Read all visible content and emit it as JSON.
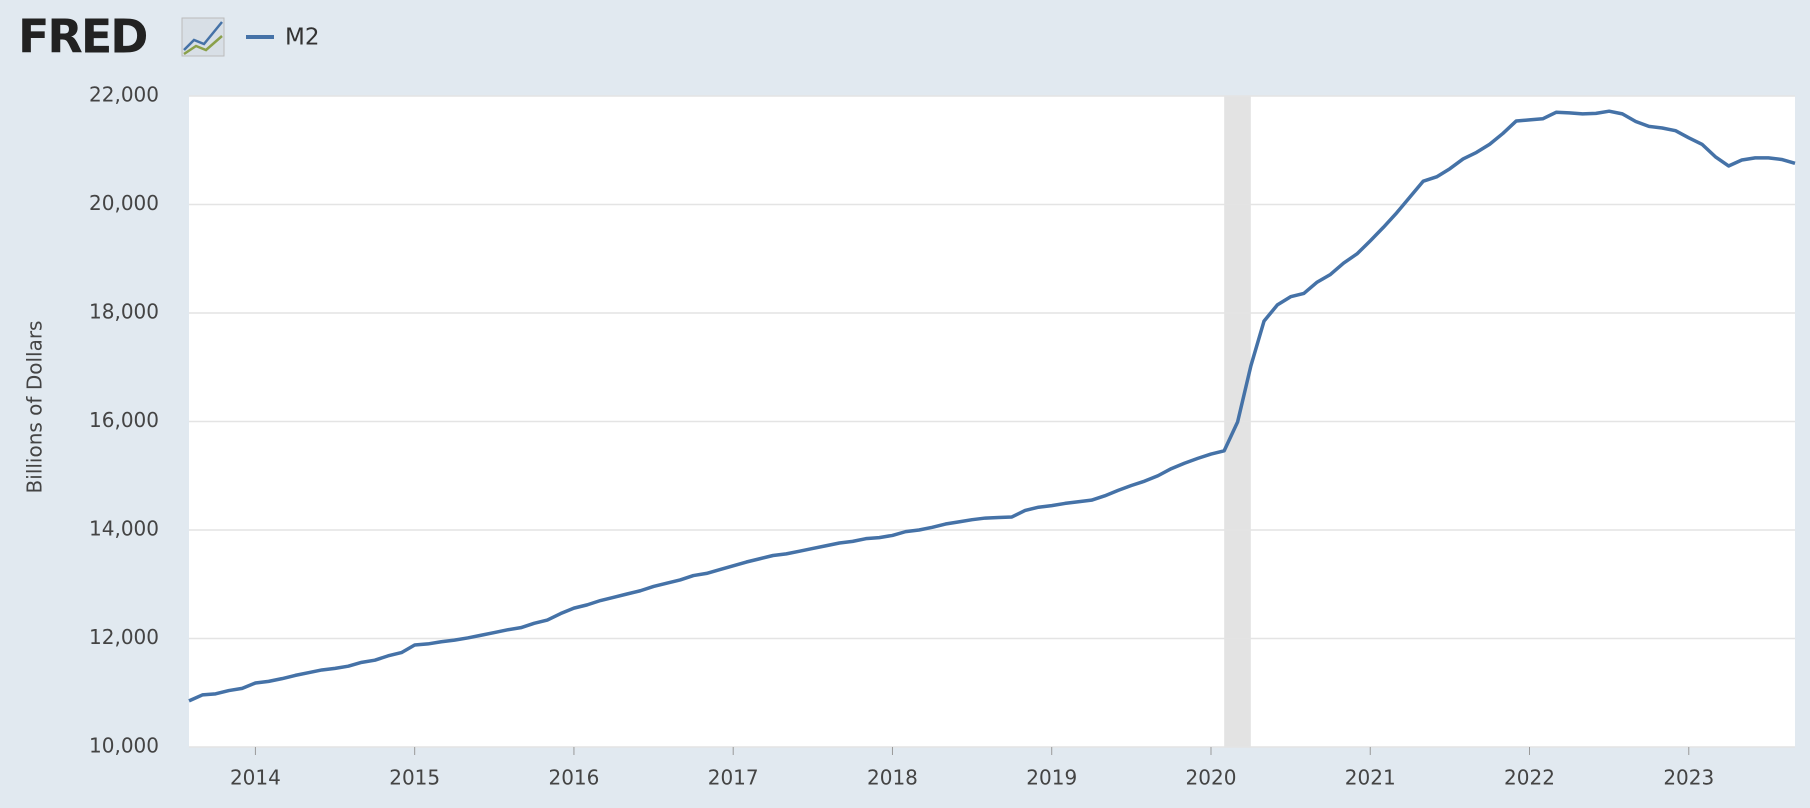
{
  "chart_data": {
    "type": "line",
    "logo": "FRED",
    "y_label": "Billions of Dollars",
    "xlim": [
      2013.583,
      2023.667
    ],
    "ylim": [
      10000,
      22000
    ],
    "xticks": [
      2014,
      2015,
      2016,
      2017,
      2018,
      2019,
      2020,
      2021,
      2022,
      2023
    ],
    "yticks": [
      {
        "value": 10000,
        "label": "10,000"
      },
      {
        "value": 12000,
        "label": "12,000"
      },
      {
        "value": 14000,
        "label": "14,000"
      },
      {
        "value": 16000,
        "label": "16,000"
      },
      {
        "value": 18000,
        "label": "18,000"
      },
      {
        "value": 20000,
        "label": "20,000"
      },
      {
        "value": 22000,
        "label": "22,000"
      }
    ],
    "grid": true,
    "recessions": [
      [
        2020.083,
        2020.25
      ]
    ],
    "x": [
      2013.583,
      2013.667,
      2013.75,
      2013.833,
      2013.917,
      2014.0,
      2014.083,
      2014.167,
      2014.25,
      2014.333,
      2014.417,
      2014.5,
      2014.583,
      2014.667,
      2014.75,
      2014.833,
      2014.917,
      2015.0,
      2015.083,
      2015.167,
      2015.25,
      2015.333,
      2015.417,
      2015.5,
      2015.583,
      2015.667,
      2015.75,
      2015.833,
      2015.917,
      2016.0,
      2016.083,
      2016.167,
      2016.25,
      2016.333,
      2016.417,
      2016.5,
      2016.583,
      2016.667,
      2016.75,
      2016.833,
      2016.917,
      2017.0,
      2017.083,
      2017.167,
      2017.25,
      2017.333,
      2017.417,
      2017.5,
      2017.583,
      2017.667,
      2017.75,
      2017.833,
      2017.917,
      2018.0,
      2018.083,
      2018.167,
      2018.25,
      2018.333,
      2018.417,
      2018.5,
      2018.583,
      2018.667,
      2018.75,
      2018.833,
      2018.917,
      2019.0,
      2019.083,
      2019.167,
      2019.25,
      2019.333,
      2019.417,
      2019.5,
      2019.583,
      2019.667,
      2019.75,
      2019.833,
      2019.917,
      2020.0,
      2020.083,
      2020.167,
      2020.25,
      2020.333,
      2020.417,
      2020.5,
      2020.583,
      2020.667,
      2020.75,
      2020.833,
      2020.917,
      2021.0,
      2021.083,
      2021.167,
      2021.25,
      2021.333,
      2021.417,
      2021.5,
      2021.583,
      2021.667,
      2021.75,
      2021.833,
      2021.917,
      2022.0,
      2022.083,
      2022.167,
      2022.25,
      2022.333,
      2022.417,
      2022.5,
      2022.583,
      2022.667,
      2022.75,
      2022.833,
      2022.917,
      2023.0,
      2023.083,
      2023.167,
      2023.25,
      2023.333,
      2023.417,
      2023.5,
      2023.583,
      2023.667
    ],
    "series": [
      {
        "name": "M2",
        "color": "#4572a7",
        "values": [
          10850,
          10960,
          10980,
          11040,
          11080,
          11180,
          11210,
          11260,
          11320,
          11370,
          11420,
          11450,
          11490,
          11560,
          11600,
          11680,
          11740,
          11880,
          11900,
          11940,
          11970,
          12010,
          12060,
          12110,
          12160,
          12200,
          12280,
          12340,
          12460,
          12560,
          12620,
          12700,
          12760,
          12820,
          12880,
          12960,
          13020,
          13080,
          13160,
          13200,
          13270,
          13340,
          13410,
          13470,
          13530,
          13560,
          13610,
          13660,
          13710,
          13760,
          13790,
          13840,
          13860,
          13900,
          13970,
          14000,
          14050,
          14110,
          14150,
          14190,
          14220,
          14230,
          14240,
          14360,
          14420,
          14450,
          14490,
          14520,
          14550,
          14630,
          14730,
          14820,
          14900,
          15000,
          15130,
          15230,
          15320,
          15400,
          15460,
          15990,
          17020,
          17850,
          18150,
          18300,
          18360,
          18570,
          18710,
          18920,
          19090,
          19330,
          19580,
          19850,
          20140,
          20430,
          20510,
          20660,
          20840,
          20960,
          21110,
          21310,
          21540,
          21560,
          21580,
          21700,
          21690,
          21670,
          21680,
          21720,
          21670,
          21530,
          21440,
          21410,
          21360,
          21230,
          21110,
          20880,
          20710,
          20820,
          20860,
          20860,
          20830,
          20760
        ]
      }
    ]
  }
}
